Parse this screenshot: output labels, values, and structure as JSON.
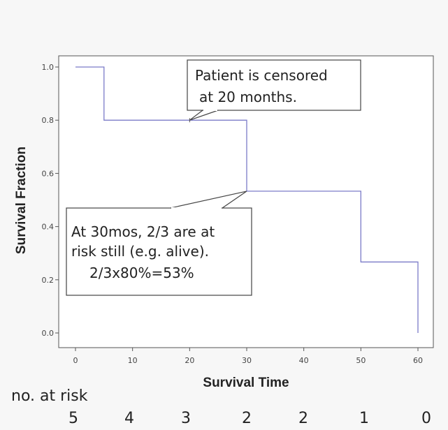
{
  "chart_data": {
    "type": "line",
    "step": true,
    "xlabel": "Survival Time",
    "ylabel": "Survival Fraction",
    "xlim": [
      0,
      60
    ],
    "ylim": [
      0,
      1.0
    ],
    "xticks": [
      0,
      10,
      20,
      30,
      40,
      50,
      60
    ],
    "yticks": [
      "0.0",
      "0.2",
      "0.4",
      "0.6",
      "0.8",
      "1.0"
    ],
    "line_color": "#7b7bc8",
    "grid": false,
    "series": [
      {
        "x": [
          0,
          5,
          5,
          30,
          30,
          50,
          50,
          60,
          60
        ],
        "y": [
          1.0,
          1.0,
          0.8,
          0.8,
          0.533,
          0.533,
          0.267,
          0.267,
          0.0
        ]
      }
    ],
    "censored": [
      {
        "x": 20,
        "y": 0.8
      }
    ],
    "annotations": [
      {
        "lines": [
          "Patient is censored",
          "at 20 months."
        ],
        "points_to": {
          "x": 20,
          "y": 0.8
        }
      },
      {
        "lines": [
          "At 30mos, 2/3 are at",
          "risk still (e.g. alive).",
          "2/3x80%=53%"
        ],
        "points_to": {
          "x": 30,
          "y": 0.533
        }
      }
    ]
  },
  "risk_table": {
    "label": "no. at risk",
    "values": [
      "5",
      "4",
      "3",
      "2",
      "2",
      "1",
      "0"
    ]
  }
}
